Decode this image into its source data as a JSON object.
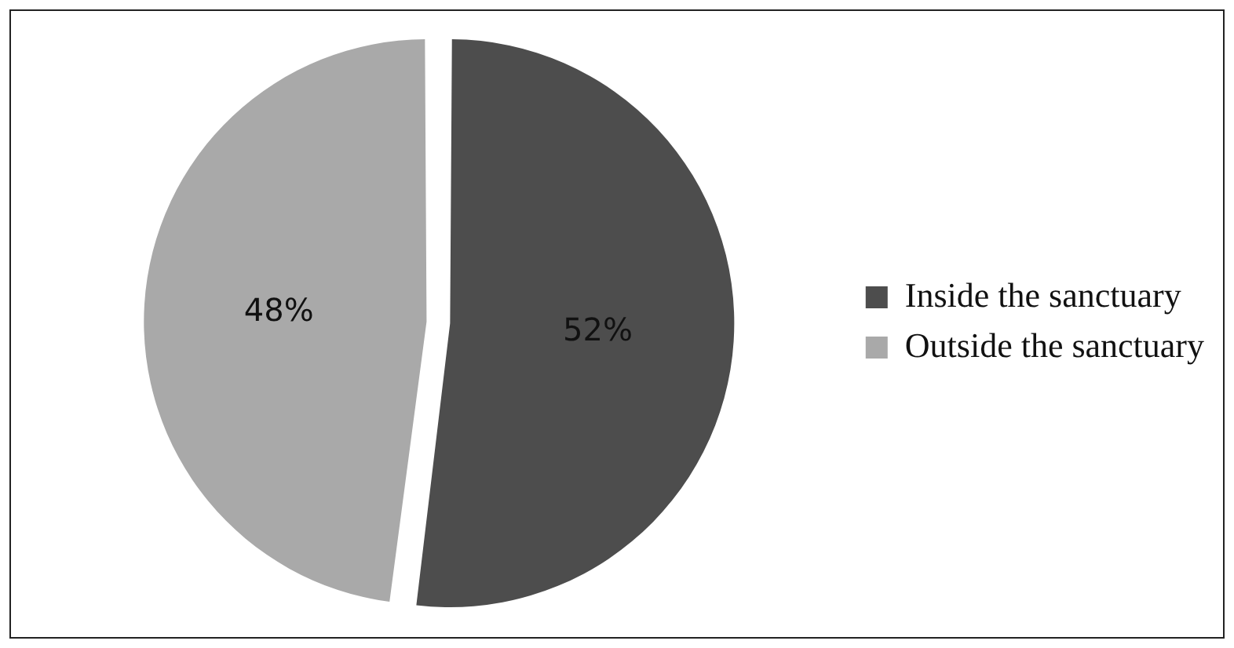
{
  "chart_data": {
    "type": "pie",
    "categories": [
      "Inside the sanctuary",
      "Outside the sanctuary"
    ],
    "values": [
      52,
      48
    ],
    "colors": [
      "#4d4d4d",
      "#a9a9a9"
    ],
    "value_labels": [
      "52%",
      "48%"
    ],
    "legend": "right"
  }
}
